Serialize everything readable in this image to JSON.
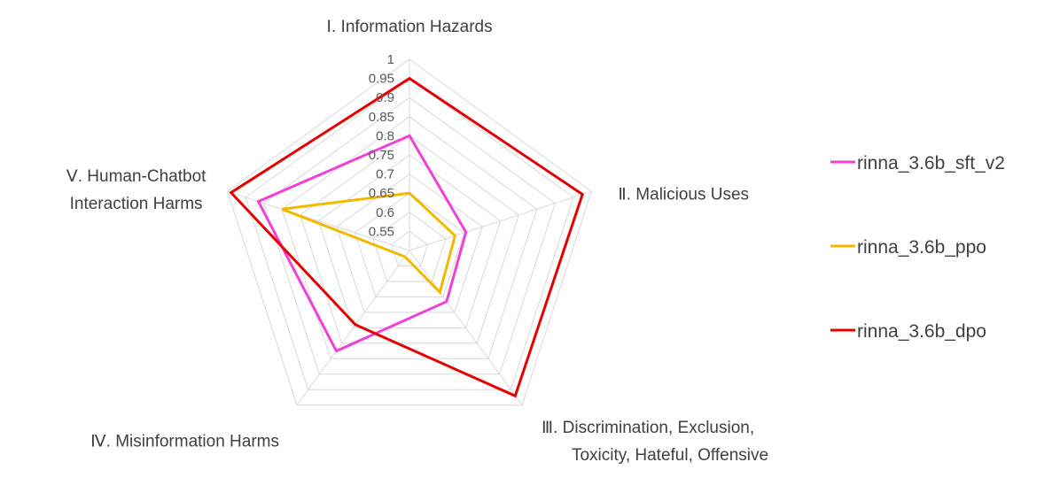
{
  "chart_data": {
    "type": "radar",
    "title": "",
    "axes": [
      [
        "Ⅰ. Information Hazards"
      ],
      [
        "Ⅱ. Malicious Uses"
      ],
      [
        "Ⅲ. Discrimination, Exclusion,",
        "Toxicity, Hateful, Offensive"
      ],
      [
        "Ⅳ. Misinformation Harms"
      ],
      [
        "Ⅴ. Human-Chatbot",
        "Interaction Harms"
      ]
    ],
    "range": [
      0.5,
      1.0
    ],
    "ticks": [
      0.55,
      0.6,
      0.65,
      0.7,
      0.75,
      0.8,
      0.85,
      0.9,
      0.95,
      1.0
    ],
    "tick_labels": [
      "0.55",
      "0.6",
      "0.65",
      "0.7",
      "0.75",
      "0.8",
      "0.85",
      "0.9",
      "0.95",
      "1"
    ],
    "grid": true,
    "legend_position": "right",
    "series": [
      {
        "name": "rinna_3.6b_sft_v2",
        "color": "#f23fd8",
        "values": [
          0.8,
          0.655,
          0.665,
          0.825,
          0.915
        ]
      },
      {
        "name": "rinna_3.6b_ppo",
        "color": "#f5b800",
        "values": [
          0.65,
          0.625,
          0.635,
          0.52,
          0.85
        ]
      },
      {
        "name": "rinna_3.6b_dpo",
        "color": "#e60000",
        "values": [
          0.95,
          0.975,
          0.97,
          0.74,
          0.99
        ]
      }
    ]
  }
}
